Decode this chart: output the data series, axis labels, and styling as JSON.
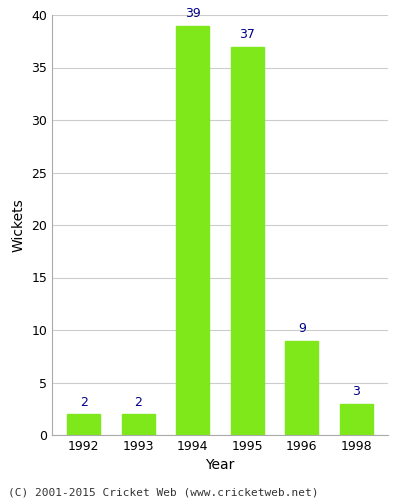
{
  "categories": [
    "1992",
    "1993",
    "1994",
    "1995",
    "1996",
    "1998"
  ],
  "values": [
    2,
    2,
    39,
    37,
    9,
    3
  ],
  "bar_color": "#7FE81A",
  "xlabel": "Year",
  "ylabel": "Wickets",
  "ylim": [
    0,
    40
  ],
  "yticks": [
    0,
    5,
    10,
    15,
    20,
    25,
    30,
    35,
    40
  ],
  "label_color": "#00008B",
  "label_fontsize": 9,
  "axis_label_fontsize": 10,
  "tick_fontsize": 9,
  "footer_text": "(C) 2001-2015 Cricket Web (www.cricketweb.net)",
  "footer_fontsize": 8,
  "background_color": "#ffffff",
  "plot_background_color": "#ffffff",
  "grid_color": "#cccccc",
  "spine_color": "#aaaaaa"
}
